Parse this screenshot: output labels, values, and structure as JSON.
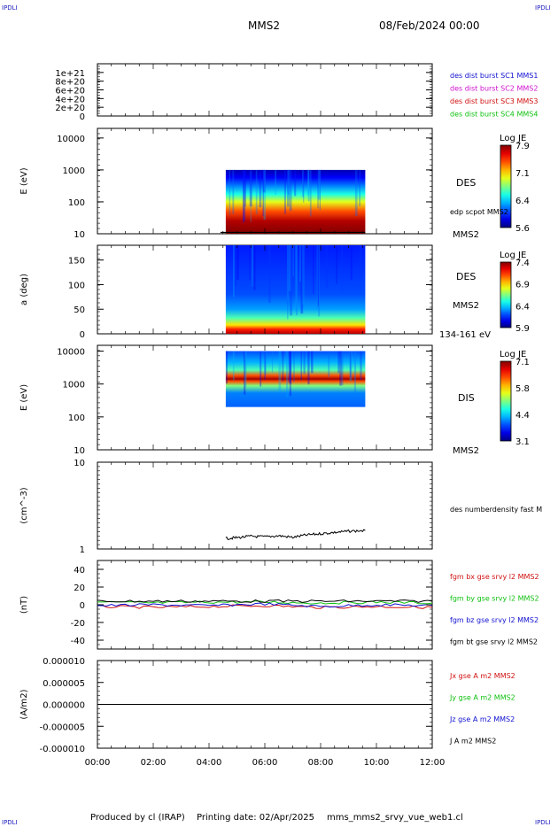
{
  "header": {
    "corner_label": "IPDLI",
    "spacecraft": "MMS2",
    "date": "08/Feb/2024 00:00"
  },
  "footer": {
    "produced_by": "Produced by cl (IRAP)",
    "printing_date": "Printing date: 02/Apr/2025",
    "filename": "mms_mms2_srvy_vue_web1.cl"
  },
  "colors": {
    "blue": "#1010d0",
    "magenta": "#d010d0",
    "red": "#d01010",
    "green": "#10c010",
    "black": "#000000"
  },
  "x_axis": {
    "tick_labels": [
      "00:00",
      "02:00",
      "04:00",
      "06:00",
      "08:00",
      "10:00",
      "12:00"
    ],
    "range_hours": [
      0,
      12
    ]
  },
  "panels": [
    {
      "id": "dist-burst",
      "type": "line",
      "y_tick_labels": [
        "1e+21",
        "8e+20",
        "6e+20",
        "4e+20",
        "2e+20",
        "0"
      ],
      "ylim": [
        0,
        1.2e+21
      ],
      "legend": [
        {
          "text": "des dist burst SC1 MMS1",
          "color": "#1010d0"
        },
        {
          "text": "des dist burst SC2 MMS2",
          "color": "#d010d0"
        },
        {
          "text": "des dist burst SC3 MMS3",
          "color": "#d01010"
        },
        {
          "text": "des dist burst SC4 MMS4",
          "color": "#10c010"
        }
      ],
      "dashed_zero": true
    },
    {
      "id": "des-energy",
      "type": "heatmap",
      "ylabel": "E (eV)",
      "y_scale": "log",
      "ylim": [
        10,
        20000
      ],
      "y_tick_labels": [
        "10000",
        "1000",
        "100",
        "10"
      ],
      "data_x_range": [
        4.6,
        9.6
      ],
      "data_y_range": [
        10,
        1000
      ],
      "right_labels": [
        "DES",
        "edp scpot MMS2",
        "MMS2"
      ],
      "colorbar": {
        "title": "Log JE",
        "ticks": [
          "7.9",
          "7.1",
          "6.4",
          "5.6"
        ],
        "range": [
          5.6,
          7.9
        ]
      },
      "overlay_line": "edp scpot MMS2"
    },
    {
      "id": "des-pitch",
      "type": "heatmap",
      "ylabel": "a (deg)",
      "ylim": [
        0,
        180
      ],
      "y_tick_labels": [
        "150",
        "100",
        "50",
        "0"
      ],
      "data_x_range": [
        4.6,
        9.6
      ],
      "right_labels": [
        "DES",
        "MMS2",
        "134-161 eV"
      ],
      "colorbar": {
        "title": "Log JE",
        "ticks": [
          "7.4",
          "6.9",
          "6.4",
          "5.9"
        ],
        "range": [
          5.9,
          7.4
        ]
      }
    },
    {
      "id": "dis-energy",
      "type": "heatmap",
      "ylabel": "E (eV)",
      "y_scale": "log",
      "ylim": [
        10,
        15000
      ],
      "y_tick_labels": [
        "10000",
        "1000",
        "100",
        "10"
      ],
      "data_x_range": [
        4.6,
        9.6
      ],
      "data_y_range": [
        200,
        10000
      ],
      "right_labels": [
        "DIS",
        "MMS2"
      ],
      "colorbar": {
        "title": "Log JE",
        "ticks": [
          "7.1",
          "5.8",
          "4.4",
          "3.1"
        ],
        "range": [
          3.1,
          7.1
        ]
      }
    },
    {
      "id": "density",
      "type": "line",
      "ylabel": "(cm^-3)",
      "y_scale": "log",
      "ylim": [
        1,
        10
      ],
      "y_tick_labels": [
        "10",
        "1"
      ],
      "legend": [
        {
          "text": "des numberdensity fast M",
          "color": "#000000"
        }
      ],
      "series": [
        {
          "name": "des numberdensity fast M",
          "x": [
            4.6,
            5.0,
            5.5,
            6.0,
            6.5,
            7.0,
            7.5,
            8.0,
            8.5,
            9.0,
            9.6
          ],
          "y": [
            1.32,
            1.35,
            1.4,
            1.38,
            1.42,
            1.36,
            1.45,
            1.5,
            1.55,
            1.6,
            1.63
          ]
        }
      ]
    },
    {
      "id": "fgm",
      "type": "line",
      "ylabel": "(nT)",
      "ylim": [
        -50,
        50
      ],
      "y_tick_labels": [
        "40",
        "20",
        "0",
        "-20",
        "-40"
      ],
      "legend": [
        {
          "text": "fgm bx gse srvy l2 MMS2",
          "color": "#d01010"
        },
        {
          "text": "fgm by gse srvy l2 MMS2",
          "color": "#10c010"
        },
        {
          "text": "fgm bz gse srvy l2 MMS2",
          "color": "#1010d0"
        },
        {
          "text": "fgm bt gse srvy l2 MMS2",
          "color": "#000000"
        }
      ],
      "series": [
        {
          "name": "fgm bx gse srvy l2 MMS2",
          "x": [
            0,
            2,
            4,
            6,
            8,
            10,
            12
          ],
          "y": [
            -2,
            -3,
            -2,
            -1,
            -3,
            -2,
            -3
          ]
        },
        {
          "name": "fgm by gse srvy l2 MMS2",
          "x": [
            0,
            2,
            4,
            6,
            8,
            10,
            12
          ],
          "y": [
            3,
            2,
            3,
            3,
            2,
            3,
            2
          ]
        },
        {
          "name": "fgm bz gse srvy l2 MMS2",
          "x": [
            0,
            2,
            4,
            6,
            8,
            10,
            12
          ],
          "y": [
            -1,
            0,
            -1,
            1,
            -2,
            0,
            -1
          ]
        },
        {
          "name": "fgm bt gse srvy l2 MMS2",
          "x": [
            0,
            2,
            4,
            6,
            8,
            10,
            12
          ],
          "y": [
            4,
            4,
            4,
            4,
            4,
            4,
            4
          ]
        }
      ]
    },
    {
      "id": "current",
      "type": "line",
      "ylabel": "(A/m2)",
      "ylim": [
        -1e-05,
        1e-05
      ],
      "y_tick_labels": [
        "0.000010",
        "0.000005",
        "0.000000",
        "-0.000005",
        "-0.000010"
      ],
      "legend": [
        {
          "text": "Jx gse A m2 MMS2",
          "color": "#d01010"
        },
        {
          "text": "Jy gse A m2 MMS2",
          "color": "#10c010"
        },
        {
          "text": "Jz gse A m2 MMS2",
          "color": "#1010d0"
        },
        {
          "text": "J A m2 MMS2",
          "color": "#000000"
        }
      ],
      "series": [
        {
          "name": "J A m2 MMS2",
          "x": [
            0,
            12
          ],
          "y": [
            0,
            0
          ]
        }
      ]
    }
  ]
}
